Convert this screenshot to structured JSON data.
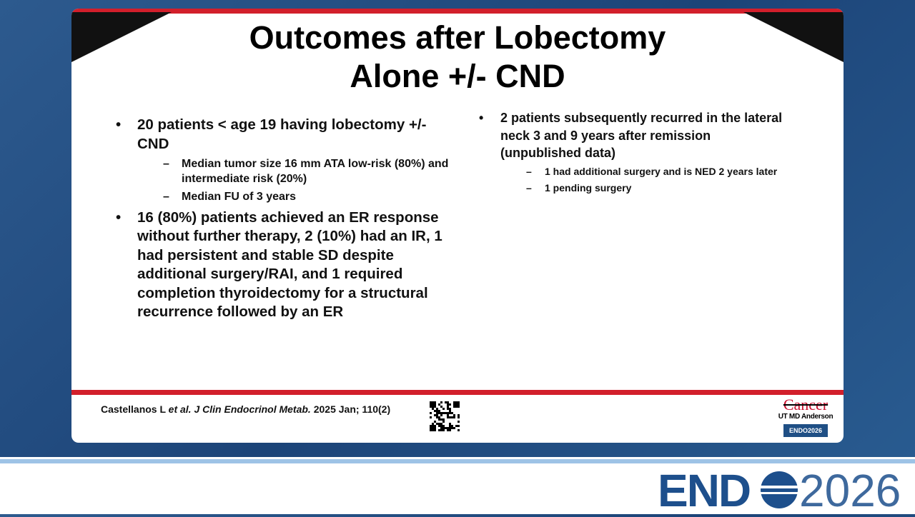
{
  "slide": {
    "title": "Outcomes after Lobectomy Alone +/- CND",
    "left_bullets": [
      {
        "text": "20 patients < age 19 having lobectomy +/- CND",
        "sub": [
          "Median tumor size 16 mm ATA low-risk (80%) and intermediate risk (20%)",
          "Median FU of 3 years"
        ]
      },
      {
        "text": "16 (80%) patients achieved an ER response without further therapy, 2 (10%) had an IR, 1 had persistent and stable SD despite additional surgery/RAI, and 1 required completion thyroidectomy for a structural recurrence followed by an ER",
        "sub": []
      }
    ],
    "right_bullets": [
      {
        "text": "2 patients subsequently recurred in the lateral neck 3 and 9 years after remission (unpublished data)",
        "sub": [
          "1 had additional surgery and is NED 2 years later",
          "1 pending surgery"
        ]
      }
    ],
    "citation": [
      "Castellanos L",
      "et al.",
      "J Clin Endocrinol Metab.",
      "2025 Jan; 110(2)"
    ],
    "logo": {
      "line1": "Cancer",
      "line2": "UT MD Anderson",
      "badge": "ENDO2026"
    }
  },
  "banner": {
    "wordmark": "END",
    "year": "2026"
  }
}
